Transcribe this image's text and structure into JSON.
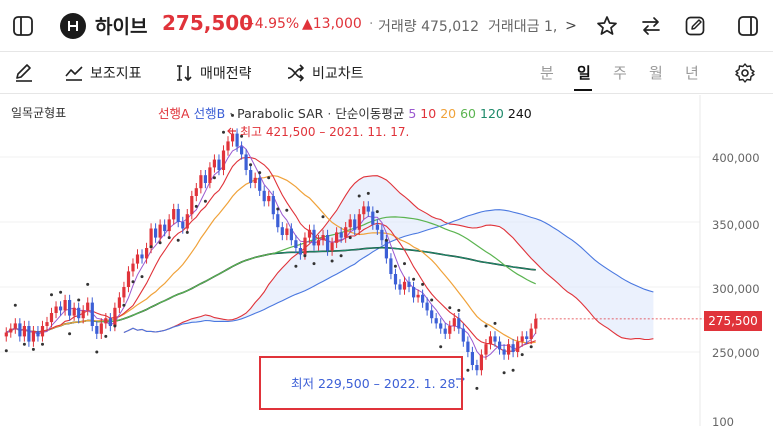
{
  "header": {
    "stock_name": "하이브",
    "price": "275,500",
    "change_pct": "+4.95%",
    "change_amt": "▲13,000",
    "separator": "·",
    "volume": "거래량 475,012",
    "value_traded": "거래대금 1,",
    "more": ">"
  },
  "toolbar": {
    "indicators": "보조지표",
    "strategy": "매매전략",
    "compare": "비교차트",
    "periods": [
      "분",
      "일",
      "주",
      "월",
      "년"
    ],
    "active_period": "일"
  },
  "chart": {
    "title": "일목균형표",
    "legend": {
      "span_a": "선행A",
      "span_b": "선행B",
      "sar": "Parabolic SAR",
      "ma_label": "단순이동평균",
      "ma_periods": [
        "5",
        "10",
        "20",
        "60",
        "120",
        "240"
      ]
    },
    "y_ticks": [
      "400,000",
      "350,000",
      "300,000",
      "250,000",
      "100"
    ],
    "current_price_tag": "275,500",
    "high_annotation": "최고 421,500 – 2021. 11. 17.",
    "low_annotation": "최저 229,500 – 2022. 1. 28.",
    "colors": {
      "up": "#e0333a",
      "down": "#3c5fd6",
      "ma5": "#9b59d0",
      "ma10": "#e0333a",
      "ma20": "#f0a23a",
      "ma60": "#5bb450",
      "ma120": "#1e8a6a",
      "ma240": "#111111",
      "cloud_upper": "#e0333a",
      "cloud_lower": "#4a78e0"
    }
  },
  "chart_data": {
    "type": "candlestick",
    "title": "",
    "ylim": [
      210000,
      440000
    ],
    "y_ticks": [
      250000,
      300000,
      350000,
      400000
    ],
    "high": {
      "value": 421500,
      "date": "2021. 11. 17."
    },
    "low": {
      "value": 229500,
      "date": "2022. 1. 28."
    },
    "closes": [
      265000,
      268000,
      272000,
      262000,
      270000,
      258000,
      266000,
      262000,
      270000,
      273000,
      280000,
      285000,
      282000,
      290000,
      278000,
      284000,
      276000,
      282000,
      288000,
      270000,
      264000,
      272000,
      276000,
      270000,
      284000,
      292000,
      300000,
      312000,
      318000,
      325000,
      322000,
      330000,
      345000,
      338000,
      348000,
      343000,
      352000,
      360000,
      350000,
      345000,
      356000,
      370000,
      376000,
      386000,
      380000,
      392000,
      398000,
      390000,
      405000,
      412000,
      418000,
      408000,
      402000,
      390000,
      380000,
      384000,
      374000,
      366000,
      370000,
      356000,
      346000,
      340000,
      345000,
      336000,
      330000,
      325000,
      338000,
      344000,
      332000,
      336000,
      340000,
      328000,
      334000,
      342000,
      338000,
      346000,
      352000,
      344000,
      356000,
      362000,
      358000,
      348000,
      344000,
      336000,
      322000,
      310000,
      302000,
      298000,
      304000,
      300000,
      292000,
      294000,
      288000,
      282000,
      276000,
      272000,
      268000,
      264000,
      270000,
      276000,
      268000,
      258000,
      250000,
      240000,
      236000,
      248000,
      256000,
      262000,
      258000,
      252000,
      248000,
      256000,
      250000,
      258000,
      262000,
      260000,
      268000,
      275500
    ]
  }
}
